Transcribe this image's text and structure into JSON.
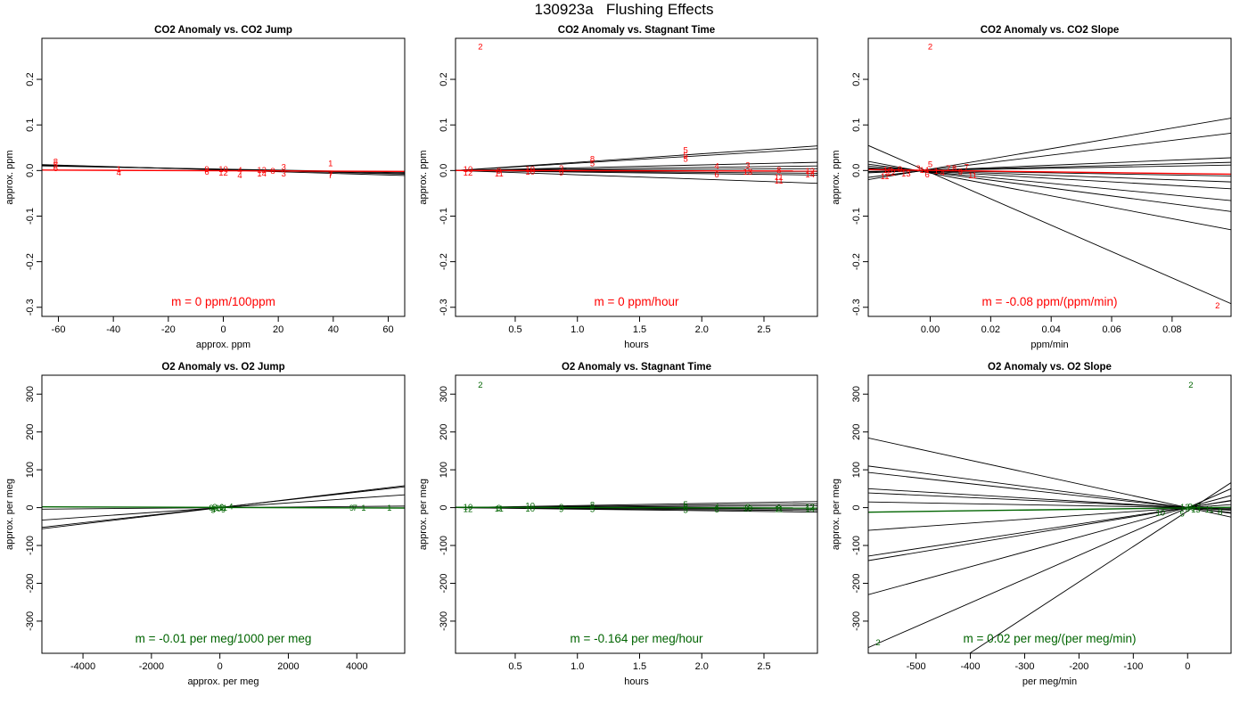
{
  "figure": {
    "title": "130923a   Flushing Effects"
  },
  "colors": {
    "co2": "#ff0000",
    "o2": "#006400",
    "lines": "#000000"
  },
  "chart_data": [
    {
      "type": "scatter",
      "title": "CO2 Anomaly vs. CO2 Jump",
      "xlabel": "approx. ppm",
      "ylabel": "approx. ppm",
      "xlim": [
        -66,
        66
      ],
      "ylim": [
        -0.32,
        0.29
      ],
      "xticks": [
        -60,
        -40,
        -20,
        0,
        20,
        40,
        60
      ],
      "yticks": [
        -0.3,
        -0.2,
        -0.1,
        0.0,
        0.1,
        0.2
      ],
      "xtick_labels": [
        "-60",
        "-40",
        "-20",
        "0",
        "20",
        "40",
        "60"
      ],
      "ytick_labels": [
        "-0.3",
        "-0.2",
        "-0.1",
        "0.0",
        "0.1",
        "0.2"
      ],
      "color": "red",
      "annotation": "m = 0 ppm/100ppm",
      "points": [
        {
          "x": -61,
          "y": 0.02,
          "label": "8"
        },
        {
          "x": -61,
          "y": 0.012,
          "label": "5"
        },
        {
          "x": -61,
          "y": 0.006,
          "label": "6"
        },
        {
          "x": -38,
          "y": 0.004,
          "label": "1"
        },
        {
          "x": -38,
          "y": -0.004,
          "label": "4"
        },
        {
          "x": -6,
          "y": 0.004,
          "label": "9"
        },
        {
          "x": -6,
          "y": -0.002,
          "label": "6"
        },
        {
          "x": 0,
          "y": 0.004,
          "label": "10"
        },
        {
          "x": 0,
          "y": -0.004,
          "label": "12"
        },
        {
          "x": 6,
          "y": 0.002,
          "label": "4"
        },
        {
          "x": 6,
          "y": -0.01,
          "label": "4"
        },
        {
          "x": 14,
          "y": 0.002,
          "label": "12"
        },
        {
          "x": 14,
          "y": -0.006,
          "label": "14"
        },
        {
          "x": 18,
          "y": 0.0,
          "label": "8"
        },
        {
          "x": 22,
          "y": 0.008,
          "label": "3"
        },
        {
          "x": 22,
          "y": -0.006,
          "label": "3"
        },
        {
          "x": 39,
          "y": 0.016,
          "label": "1"
        },
        {
          "x": 39,
          "y": -0.006,
          "label": "7"
        },
        {
          "x": 39,
          "y": -0.01,
          "label": "7"
        }
      ],
      "fit_lines": [
        {
          "y_at_xmin": 0.013,
          "y_at_xmax": -0.011
        },
        {
          "y_at_xmin": 0.012,
          "y_at_xmax": -0.008
        },
        {
          "y_at_xmin": 0.011,
          "y_at_xmax": -0.006
        },
        {
          "y_at_xmin": 0.01,
          "y_at_xmax": -0.004
        }
      ],
      "overall_fit": {
        "y_at_xmin": 0.001,
        "y_at_xmax": -0.002
      }
    },
    {
      "type": "scatter",
      "title": "CO2 Anomaly vs. Stagnant Time",
      "xlabel": "hours",
      "ylabel": "approx. ppm",
      "xlim": [
        0.02,
        2.93
      ],
      "ylim": [
        -0.32,
        0.29
      ],
      "xticks": [
        0.5,
        1.0,
        1.5,
        2.0,
        2.5
      ],
      "yticks": [
        -0.3,
        -0.2,
        -0.1,
        0.0,
        0.1,
        0.2
      ],
      "xtick_labels": [
        "0.5",
        "1.0",
        "1.5",
        "2.0",
        "2.5"
      ],
      "ytick_labels": [
        "-0.3",
        "-0.2",
        "-0.1",
        "0.0",
        "0.1",
        "0.2"
      ],
      "color": "red",
      "annotation": "m = 0 ppm/hour",
      "points": [
        {
          "x": 0.22,
          "y": 0.272,
          "label": "2"
        },
        {
          "x": 0.12,
          "y": 0.004,
          "label": "10"
        },
        {
          "x": 0.12,
          "y": -0.004,
          "label": "12"
        },
        {
          "x": 0.37,
          "y": 0.0,
          "label": "9"
        },
        {
          "x": 0.37,
          "y": -0.006,
          "label": "11"
        },
        {
          "x": 0.62,
          "y": 0.004,
          "label": "10"
        },
        {
          "x": 0.62,
          "y": -0.002,
          "label": "10"
        },
        {
          "x": 0.87,
          "y": 0.006,
          "label": "3"
        },
        {
          "x": 0.87,
          "y": -0.004,
          "label": "9"
        },
        {
          "x": 1.12,
          "y": 0.026,
          "label": "8"
        },
        {
          "x": 1.12,
          "y": 0.016,
          "label": "5"
        },
        {
          "x": 1.87,
          "y": 0.046,
          "label": "5"
        },
        {
          "x": 1.87,
          "y": 0.034,
          "label": "5"
        },
        {
          "x": 1.87,
          "y": 0.026,
          "label": "5"
        },
        {
          "x": 2.12,
          "y": 0.01,
          "label": "4"
        },
        {
          "x": 2.12,
          "y": -0.008,
          "label": "6"
        },
        {
          "x": 2.37,
          "y": 0.012,
          "label": "3"
        },
        {
          "x": 2.37,
          "y": -0.002,
          "label": "13"
        },
        {
          "x": 2.62,
          "y": 0.002,
          "label": "8"
        },
        {
          "x": 2.62,
          "y": -0.014,
          "label": "11"
        },
        {
          "x": 2.62,
          "y": -0.022,
          "label": "11"
        },
        {
          "x": 2.87,
          "y": 0.0,
          "label": "12"
        },
        {
          "x": 2.87,
          "y": -0.008,
          "label": "14"
        }
      ],
      "fit_lines": [
        {
          "y_at_xmin": 0.0,
          "y_at_xmax": 0.054
        },
        {
          "y_at_xmin": 0.0,
          "y_at_xmax": 0.048
        },
        {
          "y_at_xmin": 0.0,
          "y_at_xmax": 0.018
        },
        {
          "y_at_xmin": 0.0,
          "y_at_xmax": 0.01
        },
        {
          "y_at_xmin": 0.0,
          "y_at_xmax": 0.004
        },
        {
          "y_at_xmin": 0.0,
          "y_at_xmax": -0.002
        },
        {
          "y_at_xmin": 0.0,
          "y_at_xmax": -0.006
        },
        {
          "y_at_xmin": 0.0,
          "y_at_xmax": -0.01
        },
        {
          "y_at_xmin": 0.0,
          "y_at_xmax": -0.028
        }
      ],
      "overall_fit": {
        "y_at_xmin": 0.0,
        "y_at_xmax": -0.001
      }
    },
    {
      "type": "scatter",
      "title": "CO2 Anomaly vs. CO2 Slope",
      "xlabel": "ppm/min",
      "ylabel": "approx. ppm",
      "xlim": [
        -0.0205,
        0.0995
      ],
      "ylim": [
        -0.32,
        0.29
      ],
      "xticks": [
        0.0,
        0.02,
        0.04,
        0.06,
        0.08
      ],
      "yticks": [
        -0.3,
        -0.2,
        -0.1,
        0.0,
        0.1,
        0.2
      ],
      "xtick_labels": [
        "0.00",
        "0.02",
        "0.04",
        "0.06",
        "0.08"
      ],
      "ytick_labels": [
        "-0.3",
        "-0.2",
        "-0.1",
        "0.0",
        "0.1",
        "0.2"
      ],
      "color": "red",
      "annotation": "m = -0.08 ppm/(ppm/min)",
      "points": [
        {
          "x": 0.0,
          "y": 0.272,
          "label": "2"
        },
        {
          "x": 0.095,
          "y": -0.296,
          "label": "2"
        },
        {
          "x": -0.014,
          "y": 0.002,
          "label": "10"
        },
        {
          "x": -0.013,
          "y": -0.004,
          "label": "12"
        },
        {
          "x": -0.015,
          "y": -0.012,
          "label": "11"
        },
        {
          "x": -0.01,
          "y": 0.004,
          "label": "9"
        },
        {
          "x": -0.008,
          "y": -0.006,
          "label": "13"
        },
        {
          "x": -0.004,
          "y": 0.006,
          "label": "3"
        },
        {
          "x": -0.002,
          "y": 0.002,
          "label": "14"
        },
        {
          "x": -0.001,
          "y": -0.008,
          "label": "6"
        },
        {
          "x": 0.0,
          "y": 0.014,
          "label": "5"
        },
        {
          "x": 0.002,
          "y": 0.0,
          "label": "1"
        },
        {
          "x": 0.004,
          "y": -0.004,
          "label": "4"
        },
        {
          "x": 0.006,
          "y": 0.006,
          "label": "7"
        },
        {
          "x": 0.008,
          "y": 0.006,
          "label": "8"
        },
        {
          "x": 0.01,
          "y": -0.002,
          "label": "9"
        },
        {
          "x": 0.012,
          "y": 0.008,
          "label": "7"
        },
        {
          "x": 0.014,
          "y": -0.01,
          "label": "11"
        }
      ],
      "fit_lines": [
        {
          "y_at_xmin": -0.02,
          "y_at_xmax": 0.115
        },
        {
          "y_at_xmin": -0.015,
          "y_at_xmax": 0.082
        },
        {
          "y_at_xmin": -0.005,
          "y_at_xmax": 0.028
        },
        {
          "y_at_xmin": -0.003,
          "y_at_xmax": 0.018
        },
        {
          "y_at_xmin": -0.002,
          "y_at_xmax": 0.012
        },
        {
          "y_at_xmin": 0.002,
          "y_at_xmax": -0.012
        },
        {
          "y_at_xmin": 0.004,
          "y_at_xmax": -0.025
        },
        {
          "y_at_xmin": 0.006,
          "y_at_xmax": -0.04
        },
        {
          "y_at_xmin": 0.01,
          "y_at_xmax": -0.066
        },
        {
          "y_at_xmin": 0.014,
          "y_at_xmax": -0.09
        },
        {
          "y_at_xmin": 0.02,
          "y_at_xmax": -0.13
        },
        {
          "y_at_xmin": 0.055,
          "y_at_xmax": -0.292
        }
      ],
      "overall_fit": {
        "y_at_xmin": 0.002,
        "y_at_xmax": -0.008
      }
    },
    {
      "type": "scatter",
      "title": "O2 Anomaly vs. O2 Jump",
      "xlabel": "approx. per meg",
      "ylabel": "approx. per meg",
      "xlim": [
        -5200,
        5400
      ],
      "ylim": [
        -385,
        350
      ],
      "xticks": [
        -4000,
        -2000,
        0,
        2000,
        4000
      ],
      "yticks": [
        -300,
        -200,
        -100,
        0,
        100,
        200,
        300
      ],
      "xtick_labels": [
        "-4000",
        "-2000",
        "0",
        "2000",
        "4000"
      ],
      "ytick_labels": [
        "-300",
        "-200",
        "-100",
        "0",
        "100",
        "200",
        "300"
      ],
      "color": "darkgreen",
      "annotation": "m = -0.01 per meg/1000 per meg",
      "points": [
        {
          "x": -250,
          "y": 0,
          "label": "8"
        },
        {
          "x": -200,
          "y": -6,
          "label": "5"
        },
        {
          "x": -150,
          "y": 2,
          "label": "3"
        },
        {
          "x": -100,
          "y": -2,
          "label": "10"
        },
        {
          "x": 0,
          "y": 0,
          "label": "12"
        },
        {
          "x": 50,
          "y": 2,
          "label": "6"
        },
        {
          "x": 100,
          "y": -4,
          "label": "9"
        },
        {
          "x": 150,
          "y": 0,
          "label": "1"
        },
        {
          "x": 320,
          "y": 4,
          "label": "4"
        },
        {
          "x": 3850,
          "y": 0,
          "label": "9"
        },
        {
          "x": 3950,
          "y": 0,
          "label": "7"
        },
        {
          "x": 4200,
          "y": 0,
          "label": "1"
        },
        {
          "x": 4950,
          "y": 0,
          "label": "1"
        }
      ],
      "fit_lines": [
        {
          "y_at_xmin": -56,
          "y_at_xmax": 58
        },
        {
          "y_at_xmin": -52,
          "y_at_xmax": 55
        },
        {
          "y_at_xmin": -33,
          "y_at_xmax": 34
        },
        {
          "y_at_xmin": -4,
          "y_at_xmax": 4
        }
      ],
      "overall_fit": {
        "y_at_xmin": 2,
        "y_at_xmax": -1
      }
    },
    {
      "type": "scatter",
      "title": "O2 Anomaly vs. Stagnant Time",
      "xlabel": "hours",
      "ylabel": "approx. per meg",
      "xlim": [
        0.02,
        2.93
      ],
      "ylim": [
        -385,
        350
      ],
      "xticks": [
        0.5,
        1.0,
        1.5,
        2.0,
        2.5
      ],
      "yticks": [
        -300,
        -200,
        -100,
        0,
        100,
        200,
        300
      ],
      "xtick_labels": [
        "0.5",
        "1.0",
        "1.5",
        "2.0",
        "2.5"
      ],
      "ytick_labels": [
        "-300",
        "-200",
        "-100",
        "0",
        "100",
        "200",
        "300"
      ],
      "color": "darkgreen",
      "annotation": "m = -0.164 per meg/hour",
      "points": [
        {
          "x": 0.22,
          "y": 325,
          "label": "2"
        },
        {
          "x": 0.12,
          "y": 2,
          "label": "10"
        },
        {
          "x": 0.12,
          "y": -3,
          "label": "12"
        },
        {
          "x": 0.37,
          "y": 0,
          "label": "9"
        },
        {
          "x": 0.37,
          "y": -2,
          "label": "11"
        },
        {
          "x": 0.62,
          "y": 6,
          "label": "10"
        },
        {
          "x": 0.62,
          "y": -2,
          "label": "10"
        },
        {
          "x": 0.87,
          "y": 3,
          "label": "3"
        },
        {
          "x": 0.87,
          "y": -3,
          "label": "9"
        },
        {
          "x": 1.12,
          "y": 8,
          "label": "8"
        },
        {
          "x": 1.12,
          "y": -3,
          "label": "5"
        },
        {
          "x": 1.87,
          "y": 10,
          "label": "5"
        },
        {
          "x": 1.87,
          "y": 2,
          "label": "5"
        },
        {
          "x": 1.87,
          "y": -6,
          "label": "5"
        },
        {
          "x": 2.12,
          "y": 2,
          "label": "4"
        },
        {
          "x": 2.12,
          "y": -4,
          "label": "6"
        },
        {
          "x": 2.37,
          "y": 3,
          "label": "3"
        },
        {
          "x": 2.37,
          "y": -1,
          "label": "13"
        },
        {
          "x": 2.62,
          "y": 0,
          "label": "8"
        },
        {
          "x": 2.62,
          "y": -3,
          "label": "11"
        },
        {
          "x": 2.87,
          "y": 2,
          "label": "12"
        },
        {
          "x": 2.87,
          "y": -3,
          "label": "14"
        }
      ],
      "fit_lines": [
        {
          "y_at_xmin": 0,
          "y_at_xmax": 16
        },
        {
          "y_at_xmin": 0,
          "y_at_xmax": 10
        },
        {
          "y_at_xmin": 0,
          "y_at_xmax": 5
        },
        {
          "y_at_xmin": 0,
          "y_at_xmax": -4
        },
        {
          "y_at_xmin": 0,
          "y_at_xmax": -8
        },
        {
          "y_at_xmin": 0,
          "y_at_xmax": -12
        }
      ],
      "overall_fit": {
        "y_at_xmin": 1,
        "y_at_xmax": -1
      }
    },
    {
      "type": "scatter",
      "title": "O2 Anomaly vs. O2 Slope",
      "xlabel": "per meg/min",
      "ylabel": "approx. per meg",
      "xlim": [
        -588,
        80
      ],
      "ylim": [
        -385,
        350
      ],
      "xticks": [
        -500,
        -400,
        -300,
        -200,
        -100,
        0
      ],
      "yticks": [
        -300,
        -200,
        -100,
        0,
        100,
        200,
        300
      ],
      "xtick_labels": [
        "-500",
        "-400",
        "-300",
        "-200",
        "-100",
        "0"
      ],
      "ytick_labels": [
        "-300",
        "-200",
        "-100",
        "0",
        "100",
        "200",
        "300"
      ],
      "color": "darkgreen",
      "annotation": "m = 0.02 per meg/(per meg/min)",
      "points": [
        {
          "x": 6,
          "y": 325,
          "label": "2"
        },
        {
          "x": -570,
          "y": -355,
          "label": "2"
        },
        {
          "x": -50,
          "y": -13,
          "label": "10"
        },
        {
          "x": -10,
          "y": -15,
          "label": "5"
        },
        {
          "x": -5,
          "y": 3,
          "label": "12"
        },
        {
          "x": 0,
          "y": -2,
          "label": "6"
        },
        {
          "x": 5,
          "y": 4,
          "label": "9"
        },
        {
          "x": 10,
          "y": 0,
          "label": "3"
        },
        {
          "x": 15,
          "y": -4,
          "label": "13"
        },
        {
          "x": 20,
          "y": 2,
          "label": "7"
        },
        {
          "x": 40,
          "y": -5,
          "label": "11"
        },
        {
          "x": 60,
          "y": -10,
          "label": "8"
        }
      ],
      "fit_lines": [
        {
          "y_at_xmin": 184,
          "y_at_xmax": -25
        },
        {
          "y_at_xmin": 110,
          "y_at_xmax": -15
        },
        {
          "y_at_xmin": 93,
          "y_at_xmax": -13
        },
        {
          "y_at_xmin": 50,
          "y_at_xmax": -7
        },
        {
          "y_at_xmin": 39,
          "y_at_xmax": -5
        },
        {
          "y_at_xmin": 15,
          "y_at_xmax": -2
        },
        {
          "y_at_xmin": -60,
          "y_at_xmax": 8
        },
        {
          "y_at_xmin": -128,
          "y_at_xmax": 18
        },
        {
          "y_at_xmin": -140,
          "y_at_xmax": 19
        },
        {
          "y_at_xmin": -230,
          "y_at_xmax": 32
        },
        {
          "y_at_xmin": -370,
          "y_at_xmax": 50
        },
        {
          "y_at_xmin": -560,
          "y_at_xmax": 66
        }
      ],
      "overall_fit": {
        "y_at_xmin": -12,
        "y_at_xmax": 1
      }
    }
  ]
}
